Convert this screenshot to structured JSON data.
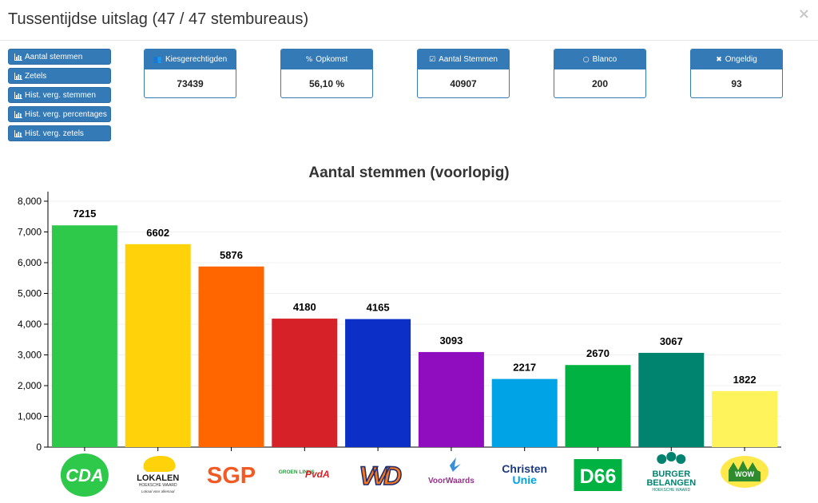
{
  "header": {
    "title": "Tussentijdse uitslag (47 / 47 stembureaus)",
    "close_glyph": "×"
  },
  "side_buttons": [
    {
      "label": "Aantal stemmen",
      "icon": "bar-chart-icon"
    },
    {
      "label": "Zetels",
      "icon": "bar-chart-icon"
    },
    {
      "label": "Hist. verg. stemmen",
      "icon": "bar-chart-icon"
    },
    {
      "label": "Hist. verg. percentages",
      "icon": "bar-chart-icon"
    },
    {
      "label": "Hist. verg. zetels",
      "icon": "bar-chart-icon"
    }
  ],
  "stats": [
    {
      "key": "kiesgerechtigden",
      "label": "Kiesgerechtigden",
      "icon": "users-icon",
      "glyph": "👥",
      "value": "73439"
    },
    {
      "key": "opkomst",
      "label": "Opkomst",
      "icon": "percent-icon",
      "glyph": "%",
      "value": "56,10 %"
    },
    {
      "key": "aantal-stemmen",
      "label": "Aantal Stemmen",
      "icon": "check-square-icon",
      "glyph": "☑",
      "value": "40907"
    },
    {
      "key": "blanco",
      "label": "Blanco",
      "icon": "circle-icon",
      "glyph": "○",
      "value": "200"
    },
    {
      "key": "ongeldig",
      "label": "Ongeldig",
      "icon": "times-icon",
      "glyph": "✖",
      "value": "93"
    }
  ],
  "colors": {
    "primary": "#337ab7",
    "primary_border": "#2e6da4"
  },
  "chart_data": {
    "type": "bar",
    "title": "Aantal stemmen (voorlopig)",
    "xlabel": "",
    "ylabel": "",
    "ylim": [
      0,
      8000
    ],
    "yticks": [
      "0",
      "1,000",
      "2,000",
      "3,000",
      "4,000",
      "5,000",
      "6,000",
      "7,000",
      "8,000"
    ],
    "grid": true,
    "categories": [
      "CDA",
      "Lokalen Hoeksche Waard",
      "SGP",
      "GroenLinks PvdA",
      "VVD",
      "VoorWaards",
      "ChristenUnie",
      "D66",
      "Burger Belangen Hoeksche Waard",
      "WOW"
    ],
    "values": [
      7215,
      6602,
      5876,
      4180,
      4165,
      3093,
      2217,
      2670,
      3067,
      1822
    ],
    "value_labels": [
      "7215",
      "6602",
      "5876",
      "4180",
      "4165",
      "3093",
      "2217",
      "2670",
      "3067",
      "1822"
    ],
    "bar_colors": [
      "#2ec94a",
      "#ffd20a",
      "#ff6600",
      "#d62128",
      "#0b2fc7",
      "#8f0cbf",
      "#00a3e6",
      "#00b241",
      "#00836f",
      "#fff35c"
    ],
    "logos": [
      {
        "name": "cda-logo",
        "text": "CDA"
      },
      {
        "name": "lokalen-logo",
        "text": "LOKALEN",
        "sub": "HOEKSCHE WAARD",
        "sub2": "Lokaal voor allemaal"
      },
      {
        "name": "sgp-logo",
        "text": "SGP"
      },
      {
        "name": "groenlinks-pvda-logo",
        "text": "GROEN LINKS",
        "text2": "PvdA"
      },
      {
        "name": "vvd-logo",
        "text": "VVD"
      },
      {
        "name": "voorwaards-logo",
        "text": "VoorWaards"
      },
      {
        "name": "christenunie-logo",
        "text": "Christen",
        "text2": "Unie"
      },
      {
        "name": "d66-logo",
        "text": "D66"
      },
      {
        "name": "burgerbelangen-logo",
        "text": "BURGER",
        "text2": "BELANGEN",
        "sub": "HOEKSCHE WAARD"
      },
      {
        "name": "wow-logo",
        "text": "WOW"
      }
    ]
  }
}
